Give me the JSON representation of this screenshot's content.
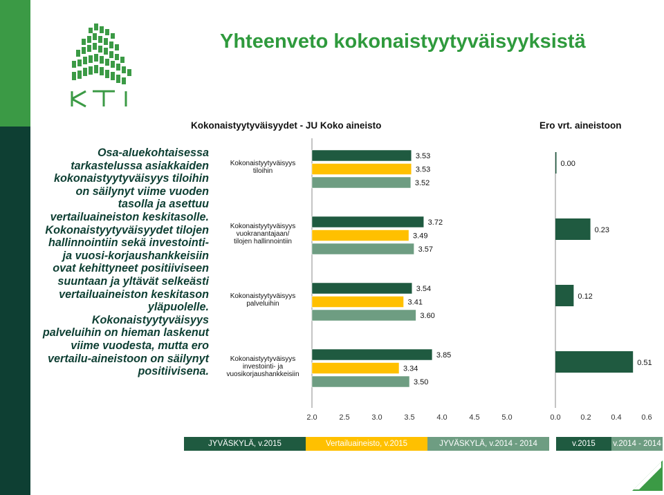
{
  "slide": {
    "title": "Yhteenveto kokonaistyytyväisyyksistä",
    "logo_text": "KTI",
    "body_paragraphs": [
      "Osa-aluekohtaisessa tarkastelussa asiakkaiden kokonaistyytyväisyys tiloihin on säilynyt viime vuoden tasolla ja asettuu vertailuaineiston keskitasolle.",
      "Kokonaistyytyväisyydet tilojen hallinnointiin sekä investointi- ja vuosi-korjaushankkeisiin ovat kehittyneet positiiviseen suuntaan ja yltävät selkeästi vertailuaineiston keskitason yläpuolelle.",
      "Kokonaistyytyväisyys palveluihin on hieman laskenut viime vuodesta, mutta ero vertailu-aineistoon on säilynyt positiivisena."
    ]
  },
  "colors": {
    "jyvaskyla_2015": "#1f5a40",
    "vertailuaineisto_2015": "#ffc000",
    "jyvaskyla_2014_2014": "#6e9d82",
    "diff_2015": "#1f5a40",
    "diff_2014": "#6e9d82",
    "brand_green": "#2f9a3d",
    "brand_dark": "#0e3f33"
  },
  "chart_data": [
    {
      "type": "bar",
      "orientation": "horizontal",
      "title": "Kokonaistyytyväisyydet - JU Koko aineisto",
      "categories": [
        [
          "Kokonaistyytyväisyys",
          "tiloihin"
        ],
        [
          "Kokonaistyytyväisyys",
          "vuokranantajaan/",
          "tilojen hallinnointiin"
        ],
        [
          "Kokonaistyytyväisyys",
          "palveluihin"
        ],
        [
          "Kokonaistyytyväisyys",
          "investointi- ja",
          "vuosikorjaushankkeisiin"
        ]
      ],
      "series": [
        {
          "name": "JYVÄSKYLÄ, v.2015",
          "values": [
            3.53,
            3.72,
            3.54,
            3.85
          ],
          "labels": [
            "3.53",
            "3.72",
            "3.54",
            "3.85"
          ]
        },
        {
          "name": "Vertailuaineisto, v.2015",
          "values": [
            3.53,
            3.49,
            3.41,
            3.34
          ],
          "labels": [
            "3.53",
            "3.49",
            "3.41",
            "3.34"
          ]
        },
        {
          "name": "JYVÄSKYLÄ, v.2014 - 2014",
          "values": [
            3.52,
            3.57,
            3.6,
            3.5
          ],
          "labels": [
            "3.52",
            "3.57",
            "3.60",
            "3.50"
          ]
        }
      ],
      "xlim": [
        2.0,
        5.0
      ],
      "xticks": [
        "2.0",
        "2.5",
        "3.0",
        "3.5",
        "4.0",
        "4.5",
        "5.0"
      ]
    },
    {
      "type": "bar",
      "orientation": "horizontal",
      "title": "Ero vrt. aineistoon",
      "categories": [
        "tiloihin",
        "vuokranantajaan/tilojen hallinnointiin",
        "palveluihin",
        "investointi- ja vuosikorjaushankkeisiin"
      ],
      "values": [
        0.0,
        0.23,
        0.12,
        0.51
      ],
      "labels": [
        "0.00",
        "0.23",
        "0.12",
        "0.51"
      ],
      "xlim": [
        0.0,
        0.6
      ],
      "xticks": [
        "0.0",
        "0.2",
        "0.4",
        "0.6"
      ]
    }
  ],
  "legend": [
    {
      "label": "JYVÄSKYLÄ, v.2015"
    },
    {
      "label": "Vertailuaineisto, v.2015"
    },
    {
      "label": "JYVÄSKYLÄ, v.2014 - 2014"
    },
    {
      "label": "v.2015"
    },
    {
      "label": "v.2014 - 2014"
    }
  ]
}
